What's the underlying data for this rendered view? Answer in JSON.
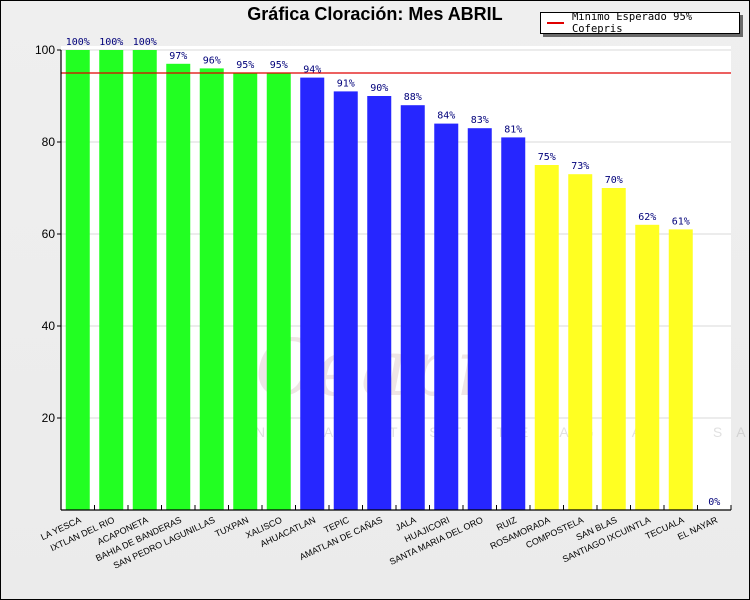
{
  "chart_data": {
    "type": "bar",
    "title": "Gráfica Cloración: Mes ABRIL",
    "xlabel": "",
    "ylabel": "",
    "ylim": [
      0,
      100
    ],
    "yticks": [
      20,
      40,
      60,
      80,
      100
    ],
    "grid": true,
    "legend_position": "top-right",
    "value_suffix": "%",
    "categories": [
      "LA YESCA",
      "IXTLAN DEL RIO",
      "ACAPONETA",
      "BAHIA DE BANDERAS",
      "SAN PEDRO LAGUNILLAS",
      "TUXPAN",
      "XALISCO",
      "AHUACATLAN",
      "TEPIC",
      "AMATLAN DE CAÑAS",
      "JALA",
      "HUAJICORI",
      "SANTA MARIA DEL ORO",
      "RUIZ",
      "ROSAMORADA",
      "COMPOSTELA",
      "SAN BLAS",
      "SANTIAGO IXCUINTLA",
      "TECUALA",
      "EL NAYAR"
    ],
    "values": [
      100,
      100,
      100,
      97,
      96,
      95,
      95,
      94,
      91,
      90,
      88,
      84,
      83,
      81,
      75,
      73,
      70,
      62,
      61,
      0
    ],
    "bar_colors": [
      "#22ff22",
      "#22ff22",
      "#22ff22",
      "#22ff22",
      "#22ff22",
      "#22ff22",
      "#22ff22",
      "#2626ff",
      "#2626ff",
      "#2626ff",
      "#2626ff",
      "#2626ff",
      "#2626ff",
      "#2626ff",
      "#ffff22",
      "#ffff22",
      "#ffff22",
      "#ffff22",
      "#ffff22",
      "#ffff22"
    ],
    "reference_line": {
      "value": 95,
      "label": "Minimo Esperado 95% Cofepris",
      "color": "#e00000"
    }
  },
  "watermark": {
    "text": "Ceapi",
    "subtext": "NAYARIT STATE AGUA Y SANEAMIENTO"
  }
}
